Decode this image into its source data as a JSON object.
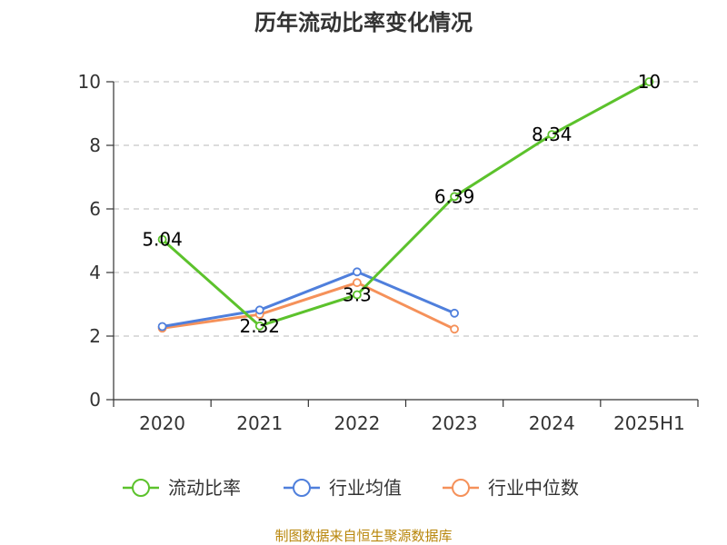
{
  "chart_data": {
    "type": "line",
    "title": "历年流动比率变化情况",
    "categories": [
      "2020",
      "2021",
      "2022",
      "2023",
      "2024",
      "2025H1"
    ],
    "ylim": [
      0,
      10
    ],
    "yticks": [
      "0",
      "2",
      "4",
      "6",
      "8",
      "10"
    ],
    "grid": "horizontal dashed",
    "legend_position": "bottom",
    "series": [
      {
        "name": "流动比率",
        "color": "#5cc22c",
        "values": [
          5.04,
          2.32,
          3.3,
          6.39,
          8.34,
          10
        ],
        "labels": [
          "5.04",
          "2.32",
          "3.3",
          "6.39",
          "8.34",
          "10"
        ]
      },
      {
        "name": "行业均值",
        "color": "#4f7fdc",
        "values": [
          2.3,
          2.82,
          4.02,
          2.72,
          null,
          null
        ]
      },
      {
        "name": "行业中位数",
        "color": "#f5915a",
        "values": [
          2.25,
          2.68,
          3.68,
          2.22,
          null,
          null
        ]
      }
    ]
  },
  "source_text": "制图数据来自恒生聚源数据库"
}
